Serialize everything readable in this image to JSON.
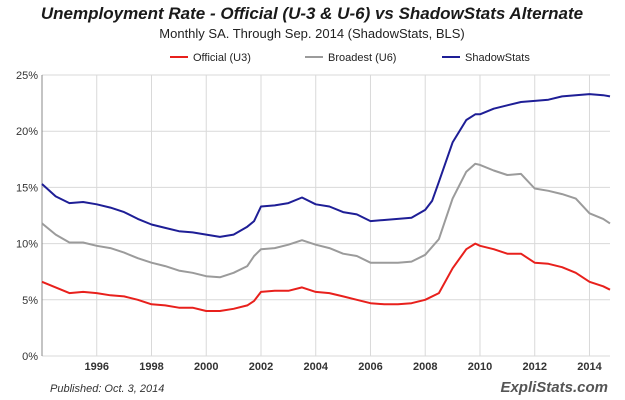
{
  "header": {
    "title": "Unemployment Rate - Official (U-3 & U-6) vs ShadowStats Alternate",
    "subtitle": "Monthly SA. Through Sep. 2014  (ShadowStats, BLS)"
  },
  "footer": {
    "published": "Published: Oct. 3, 2014",
    "brand": "ExpliStats.com"
  },
  "chart_data": {
    "type": "line",
    "title": "Unemployment Rate - Official (U-3 & U-6) vs ShadowStats Alternate",
    "subtitle": "Monthly SA. Through Sep. 2014  (ShadowStats, BLS)",
    "xlabel": "",
    "ylabel": "",
    "xlim": [
      1994.0,
      2014.75
    ],
    "ylim": [
      0,
      25
    ],
    "y_ticks": [
      0,
      5,
      10,
      15,
      20,
      25
    ],
    "y_tick_labels": [
      "0%",
      "5%",
      "10%",
      "15%",
      "20%",
      "25%"
    ],
    "x_ticks": [
      1996,
      1998,
      2000,
      2002,
      2004,
      2006,
      2008,
      2010,
      2012,
      2014
    ],
    "x_tick_labels": [
      "1996",
      "1998",
      "2000",
      "2002",
      "2004",
      "2006",
      "2008",
      "2010",
      "2012",
      "2014"
    ],
    "grid": true,
    "legend_position": "top",
    "series": [
      {
        "name": "Official (U3)",
        "color": "#e8201c",
        "x": [
          1994.0,
          1994.5,
          1995.0,
          1995.5,
          1996.0,
          1996.5,
          1997.0,
          1997.5,
          1998.0,
          1998.5,
          1999.0,
          1999.5,
          2000.0,
          2000.5,
          2001.0,
          2001.5,
          2001.75,
          2002.0,
          2002.5,
          2003.0,
          2003.5,
          2004.0,
          2004.5,
          2005.0,
          2005.5,
          2006.0,
          2006.5,
          2007.0,
          2007.5,
          2008.0,
          2008.5,
          2009.0,
          2009.5,
          2009.83,
          2010.0,
          2010.5,
          2011.0,
          2011.5,
          2012.0,
          2012.5,
          2013.0,
          2013.5,
          2014.0,
          2014.5,
          2014.75
        ],
        "values": [
          6.6,
          6.1,
          5.6,
          5.7,
          5.6,
          5.4,
          5.3,
          5.0,
          4.6,
          4.5,
          4.3,
          4.3,
          4.0,
          4.0,
          4.2,
          4.5,
          4.9,
          5.7,
          5.8,
          5.8,
          6.1,
          5.7,
          5.6,
          5.3,
          5.0,
          4.7,
          4.6,
          4.6,
          4.7,
          5.0,
          5.6,
          7.8,
          9.5,
          10.0,
          9.8,
          9.5,
          9.1,
          9.1,
          8.3,
          8.2,
          7.9,
          7.4,
          6.6,
          6.2,
          5.9
        ]
      },
      {
        "name": "Broadest (U6)",
        "color": "#9b9b9b",
        "x": [
          1994.0,
          1994.5,
          1995.0,
          1995.5,
          1996.0,
          1996.5,
          1997.0,
          1997.5,
          1998.0,
          1998.5,
          1999.0,
          1999.5,
          2000.0,
          2000.5,
          2001.0,
          2001.5,
          2001.75,
          2002.0,
          2002.5,
          2003.0,
          2003.5,
          2004.0,
          2004.5,
          2005.0,
          2005.5,
          2006.0,
          2006.5,
          2007.0,
          2007.5,
          2008.0,
          2008.5,
          2009.0,
          2009.5,
          2009.83,
          2010.0,
          2010.5,
          2011.0,
          2011.5,
          2012.0,
          2012.5,
          2013.0,
          2013.5,
          2014.0,
          2014.5,
          2014.75
        ],
        "values": [
          11.8,
          10.8,
          10.1,
          10.1,
          9.8,
          9.6,
          9.2,
          8.7,
          8.3,
          8.0,
          7.6,
          7.4,
          7.1,
          7.0,
          7.4,
          8.0,
          8.9,
          9.5,
          9.6,
          9.9,
          10.3,
          9.9,
          9.6,
          9.1,
          8.9,
          8.3,
          8.3,
          8.3,
          8.4,
          9.0,
          10.4,
          14.0,
          16.4,
          17.1,
          17.0,
          16.5,
          16.1,
          16.2,
          14.9,
          14.7,
          14.4,
          14.0,
          12.7,
          12.2,
          11.8
        ]
      },
      {
        "name": "ShadowStats",
        "color": "#1e1e96",
        "x": [
          1994.0,
          1994.5,
          1995.0,
          1995.5,
          1996.0,
          1996.5,
          1997.0,
          1997.5,
          1998.0,
          1998.5,
          1999.0,
          1999.5,
          2000.0,
          2000.5,
          2001.0,
          2001.5,
          2001.75,
          2002.0,
          2002.5,
          2003.0,
          2003.5,
          2004.0,
          2004.5,
          2005.0,
          2005.5,
          2006.0,
          2006.5,
          2007.0,
          2007.5,
          2008.0,
          2008.25,
          2008.5,
          2009.0,
          2009.5,
          2009.83,
          2010.0,
          2010.5,
          2011.0,
          2011.5,
          2012.0,
          2012.5,
          2013.0,
          2013.5,
          2014.0,
          2014.5,
          2014.75
        ],
        "values": [
          15.3,
          14.2,
          13.6,
          13.7,
          13.5,
          13.2,
          12.8,
          12.2,
          11.7,
          11.4,
          11.1,
          11.0,
          10.8,
          10.6,
          10.8,
          11.5,
          12.0,
          13.3,
          13.4,
          13.6,
          14.1,
          13.5,
          13.3,
          12.8,
          12.6,
          12.0,
          12.1,
          12.2,
          12.3,
          13.0,
          13.8,
          15.5,
          19.0,
          21.0,
          21.5,
          21.5,
          22.0,
          22.3,
          22.6,
          22.7,
          22.8,
          23.1,
          23.2,
          23.3,
          23.2,
          23.1
        ]
      }
    ]
  }
}
